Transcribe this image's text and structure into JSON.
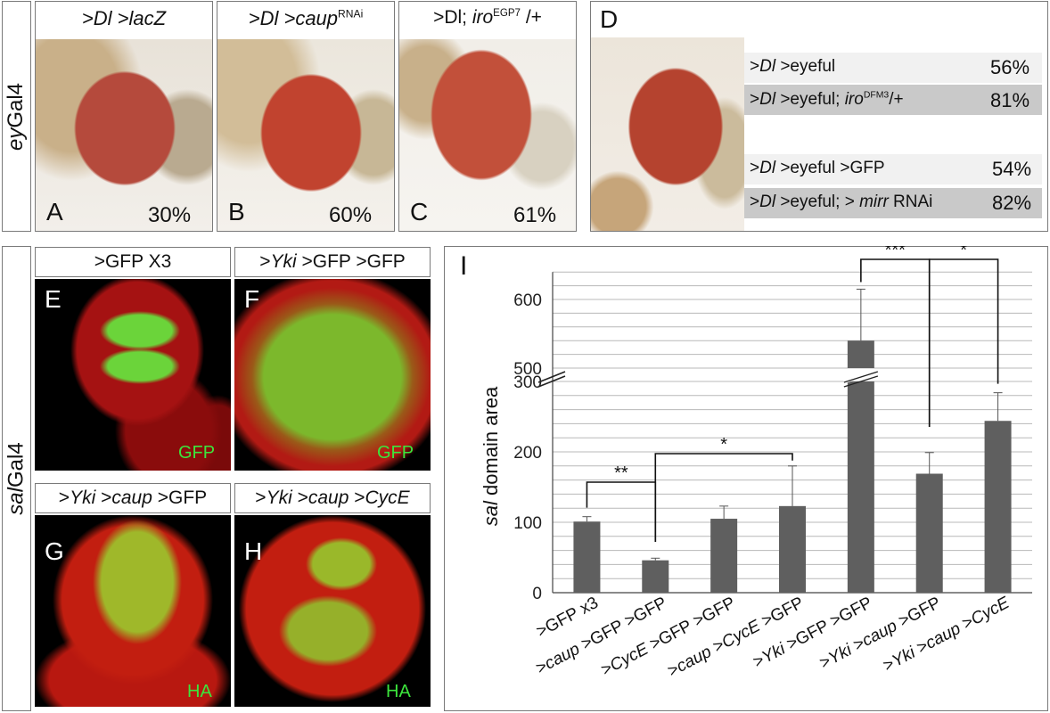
{
  "top": {
    "side_label_italic": "ey",
    "side_label_rest": "Gal4",
    "panels": [
      {
        "letter": "A",
        "title": ">Dl >lacZ",
        "percent": "30%"
      },
      {
        "letter": "B",
        "title": ">Dl >caupRNAi",
        "percent": "60%"
      },
      {
        "letter": "C",
        "title": ">Dl; iroEGP7 /+",
        "percent": "61%"
      },
      {
        "letter": "D"
      }
    ],
    "d_rows": [
      {
        "label": ">Dl >eyeful",
        "percent": "56%"
      },
      {
        "label": ">Dl >eyeful; iroDFM3/+",
        "percent": "81%"
      },
      {
        "label": ">Dl >eyeful >GFP",
        "percent": "54%"
      },
      {
        "label": ">Dl >eyeful; > mirr RNAi",
        "percent": "82%"
      }
    ]
  },
  "bottom": {
    "side_label_italic": "sal",
    "side_label_rest": "Gal4",
    "panels": [
      {
        "letter": "E",
        "title": ">GFP X3",
        "stain": "GFP"
      },
      {
        "letter": "F",
        "title": ">Yki >GFP >GFP",
        "stain": "GFP"
      },
      {
        "letter": "G",
        "title": ">Yki >caup >GFP",
        "stain": "HA"
      },
      {
        "letter": "H",
        "title": ">Yki >caup >CycE",
        "stain": "HA"
      }
    ]
  },
  "chart_data": {
    "type": "bar",
    "panel_letter": "I",
    "ylabel_italic": "sal",
    "ylabel_rest": " domain area",
    "categories": [
      ">GFP x3",
      ">caup >GFP >GFP",
      ">CycE >GFP >GFP",
      ">caup >CycE >GFP",
      ">Yki >GFP >GFP",
      ">Yki >caup >GFP",
      ">Yki >caup >CycE"
    ],
    "values": [
      101,
      46,
      105,
      123,
      540,
      169,
      244
    ],
    "errors": [
      7,
      3,
      18,
      57,
      75,
      30,
      40
    ],
    "bar_color": "#5f5f5f",
    "axis_break": {
      "lower_max": 300,
      "upper_min": 500
    },
    "lower_ticks": [
      0,
      100,
      200,
      300
    ],
    "upper_ticks": [
      500,
      600
    ],
    "ylim": [
      0,
      650
    ],
    "grid": true,
    "significance": [
      {
        "from": 0,
        "to": 1,
        "label": "**"
      },
      {
        "from": 1,
        "to": 3,
        "label": "*"
      },
      {
        "from": 4,
        "to": 5,
        "label": "***"
      },
      {
        "from": 5,
        "to": 6,
        "label": "*"
      }
    ]
  }
}
